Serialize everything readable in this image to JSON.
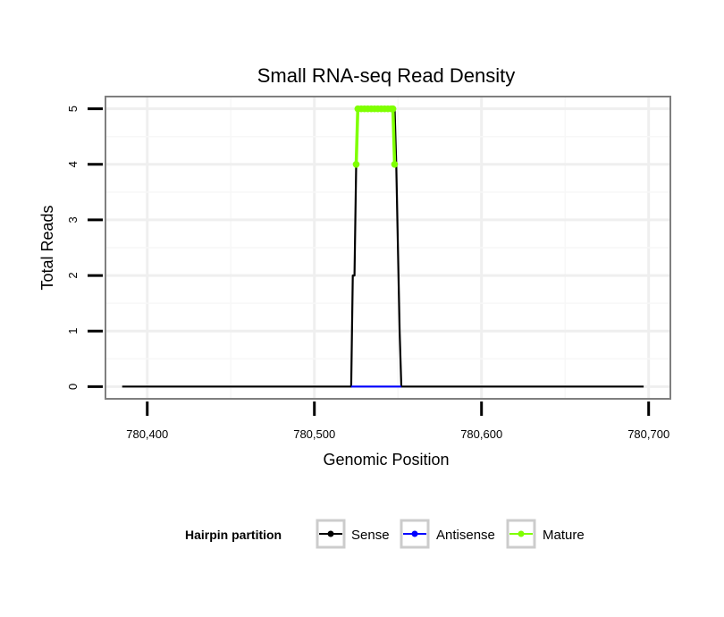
{
  "chart_data": {
    "type": "line",
    "title": "Small RNA-seq Read Density",
    "xlabel": "Genomic Position",
    "ylabel": "Total Reads",
    "xlim": [
      780375,
      780713
    ],
    "ylim": [
      -0.22,
      5.22
    ],
    "x_ticks": [
      780400,
      780500,
      780600,
      780700
    ],
    "x_tick_labels": [
      "780,400",
      "780,500",
      "780,600",
      "780,700"
    ],
    "y_ticks": [
      0,
      1,
      2,
      3,
      4,
      5
    ],
    "y_tick_labels": [
      "0",
      "1",
      "2",
      "3",
      "4",
      "5"
    ],
    "grid": true,
    "legend": {
      "title": "Hairpin partition",
      "position": "bottom",
      "entries": [
        {
          "label": "Sense",
          "color": "#000000"
        },
        {
          "label": "Antisense",
          "color": "#0000ff"
        },
        {
          "label": "Mature",
          "color": "#7fff00"
        }
      ]
    },
    "series": [
      {
        "name": "Sense",
        "color": "#000000",
        "style": "line",
        "x": [
          780385,
          780522,
          780523,
          780524,
          780525,
          780526,
          780548,
          780549,
          780550,
          780551,
          780552,
          780697
        ],
        "y": [
          0,
          0,
          2,
          2,
          4,
          5,
          5,
          4,
          2.5,
          1,
          0,
          0
        ]
      },
      {
        "name": "Antisense",
        "color": "#0000ff",
        "style": "line",
        "x": [
          780522,
          780552
        ],
        "y": [
          0,
          0
        ]
      },
      {
        "name": "Mature",
        "color": "#7fff00",
        "style": "line-points",
        "x": [
          780525,
          780526,
          780528,
          780530,
          780532,
          780534,
          780536,
          780538,
          780540,
          780542,
          780544,
          780546,
          780547,
          780548
        ],
        "y": [
          4,
          5,
          5,
          5,
          5,
          5,
          5,
          5,
          5,
          5,
          5,
          5,
          5,
          4
        ]
      }
    ]
  }
}
